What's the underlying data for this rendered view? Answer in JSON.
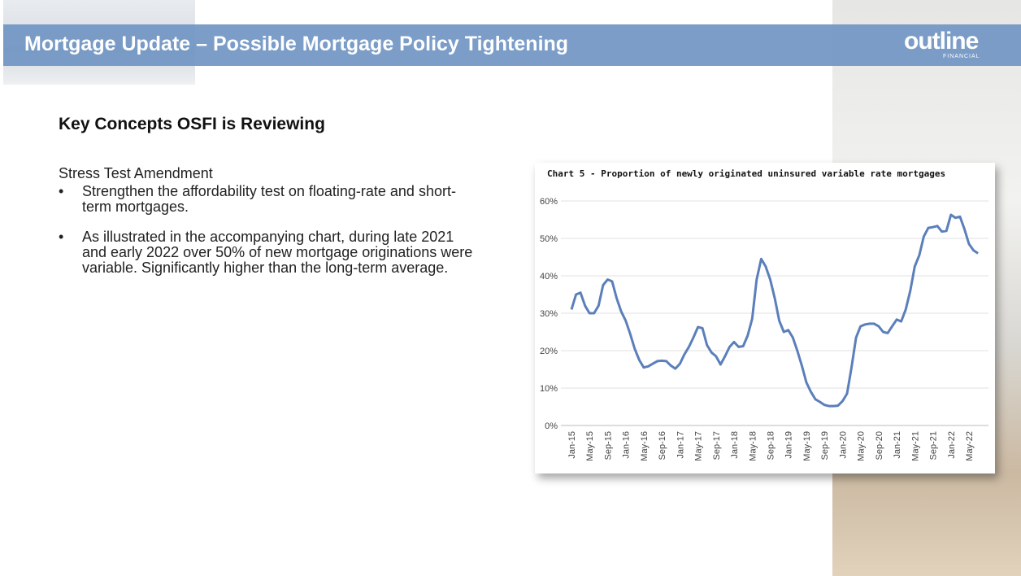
{
  "header": {
    "title": "Mortgage Update – Possible Mortgage Policy Tightening",
    "logo": "outline",
    "logo_sub": "FINANCIAL"
  },
  "body": {
    "heading": "Key Concepts OSFI is Reviewing",
    "subheading": "Stress Test Amendment",
    "bullets": [
      "Strengthen the affordability test on floating-rate and short-term mortgages.",
      "As illustrated in the accompanying chart, during late 2021 and early 2022 over 50% of new mortgage originations were variable.  Significantly higher than the long-term average."
    ]
  },
  "chart_data": {
    "type": "line",
    "title": "Chart 5 - Proportion of newly originated uninsured variable rate mortgages",
    "categories": [
      "Jan-15",
      null,
      null,
      null,
      "May-15",
      null,
      null,
      null,
      "Sep-15",
      null,
      null,
      null,
      "Jan-16",
      null,
      null,
      null,
      "May-16",
      null,
      null,
      null,
      "Sep-16",
      null,
      null,
      null,
      "Jan-17",
      null,
      null,
      null,
      "May-17",
      null,
      null,
      null,
      "Sep-17",
      null,
      null,
      null,
      "Jan-18",
      null,
      null,
      null,
      "May-18",
      null,
      null,
      null,
      "Sep-18",
      null,
      null,
      null,
      "Jan-19",
      null,
      null,
      null,
      "May-19",
      null,
      null,
      null,
      "Sep-19",
      null,
      null,
      null,
      "Jan-20",
      null,
      null,
      null,
      "May-20",
      null,
      null,
      null,
      "Sep-20",
      null,
      null,
      null,
      "Jan-21",
      null,
      null,
      null,
      "May-21",
      null,
      null,
      null,
      "Sep-21",
      null,
      null,
      null,
      "Jan-22",
      null,
      null,
      null,
      "May-22",
      null,
      null
    ],
    "series": [
      {
        "name": "Proportion",
        "color": "#5b7fba",
        "values": [
          31,
          35,
          35.5,
          32,
          30,
          30,
          32,
          37.5,
          39,
          38.5,
          34,
          30.5,
          28,
          24.5,
          20.5,
          17.5,
          15.5,
          15.8,
          16.5,
          17.2,
          17.3,
          17.2,
          16,
          15.2,
          16.5,
          19,
          21,
          23.5,
          26.3,
          26,
          21.5,
          19.5,
          18.5,
          16.3,
          18.5,
          21,
          22.3,
          21,
          21.2,
          24,
          28.5,
          39,
          44.5,
          42.5,
          39,
          34,
          28,
          25,
          25.5,
          23.5,
          20,
          16,
          11.5,
          9,
          7,
          6.3,
          5.5,
          5.2,
          5.2,
          5.3,
          6.5,
          8.5,
          15.5,
          23.5,
          26.5,
          27,
          27.2,
          27.2,
          26.5,
          25,
          24.7,
          26.5,
          28.3,
          27.8,
          31,
          36,
          42.5,
          45.5,
          50.5,
          52.8,
          53,
          53.3,
          51.8,
          52,
          56.3,
          55.5,
          55.8,
          52.5,
          48.5,
          46.8,
          46
        ]
      }
    ],
    "ylim": [
      0,
      60
    ],
    "yticks": [
      {
        "value": 0,
        "label": "0%"
      },
      {
        "value": 10,
        "label": "10%"
      },
      {
        "value": 20,
        "label": "20%"
      },
      {
        "value": 30,
        "label": "30%"
      },
      {
        "value": 40,
        "label": "40%"
      },
      {
        "value": 50,
        "label": "50%"
      },
      {
        "value": 60,
        "label": "60%"
      }
    ],
    "grid": true
  }
}
